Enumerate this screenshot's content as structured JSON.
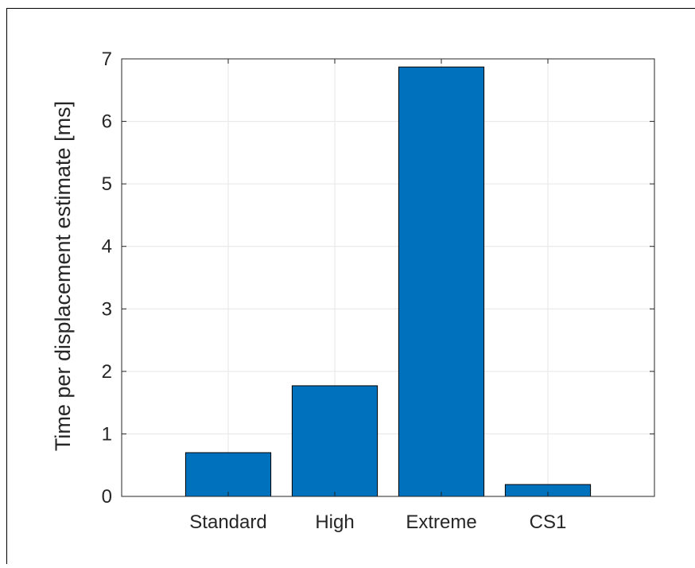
{
  "chart_data": {
    "type": "bar",
    "title": "",
    "xlabel": "",
    "ylabel": "Time per displacement estimate [ms]",
    "categories": [
      "Standard",
      "High",
      "Extreme",
      "CS1"
    ],
    "values": [
      0.7,
      1.77,
      6.87,
      0.19
    ],
    "ylim": [
      0,
      7
    ],
    "yticks": [
      0,
      1,
      2,
      3,
      4,
      5,
      6,
      7
    ],
    "grid": true,
    "bar_color": "#0072bd",
    "bar_edge_color": "#000000"
  }
}
